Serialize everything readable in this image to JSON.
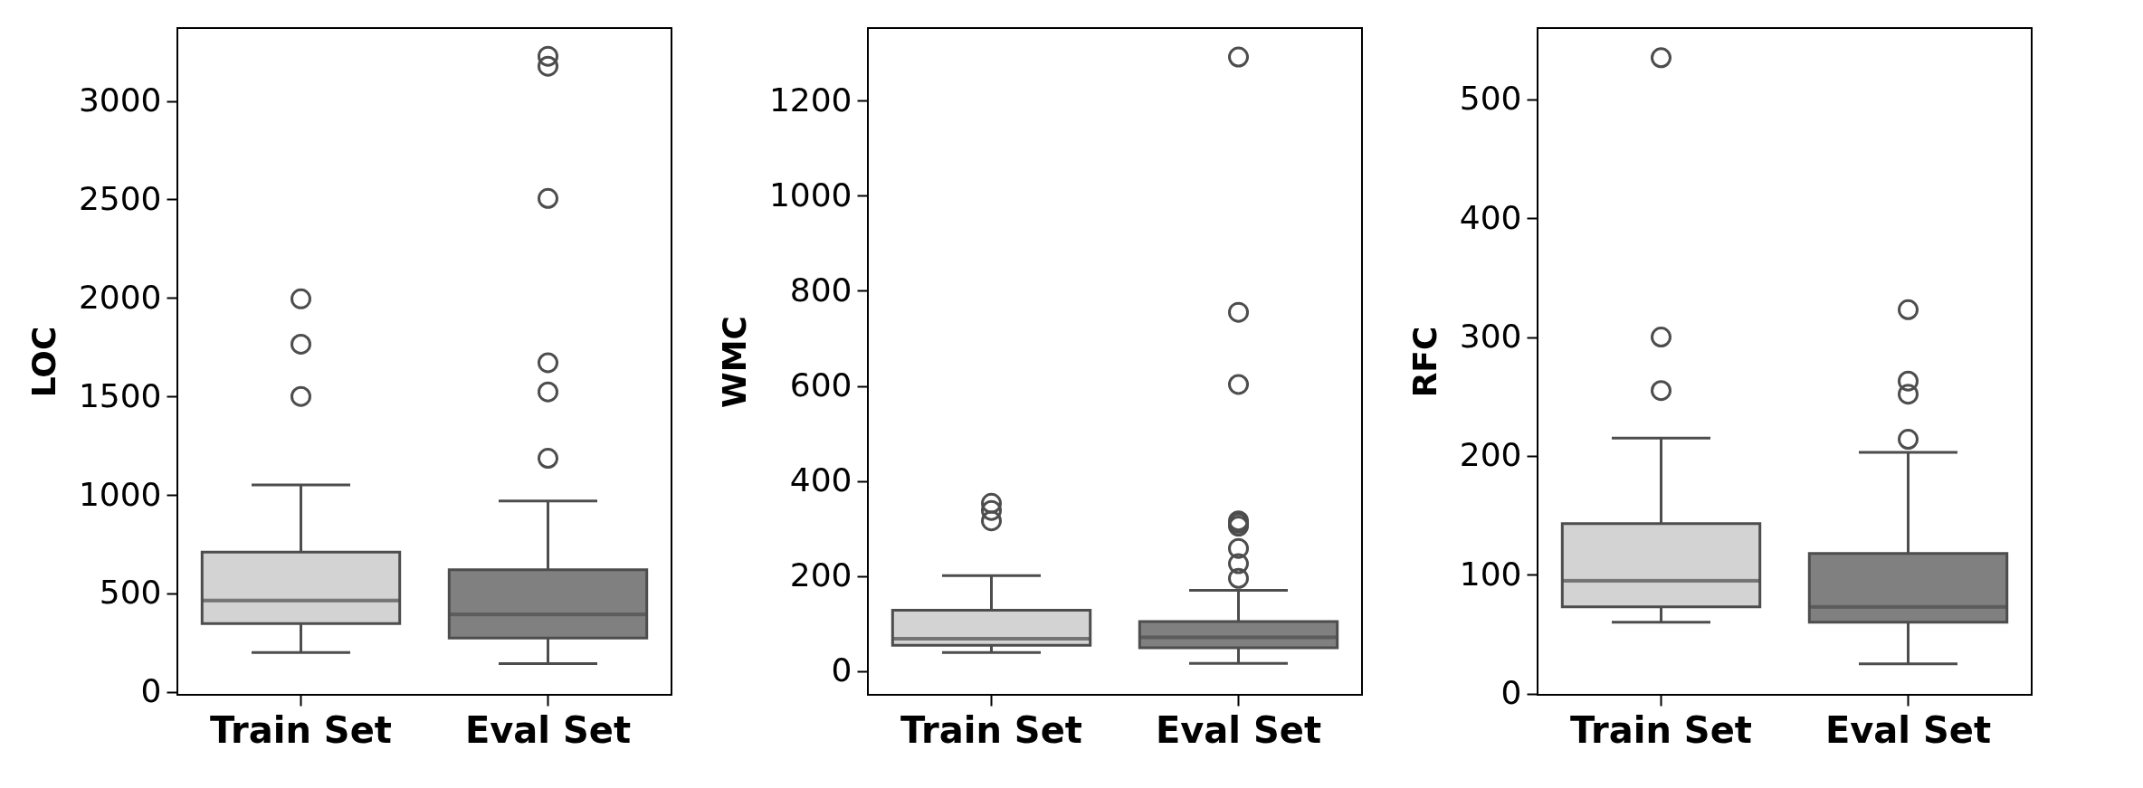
{
  "chart_data": [
    {
      "type": "box",
      "ylabel": "LOC",
      "categories": [
        "Train Set",
        "Eval Set"
      ],
      "colors": [
        "#d3d3d3",
        "#808080"
      ],
      "ylim": [
        -15,
        3370
      ],
      "yticks": [
        0,
        500,
        1000,
        1500,
        2000,
        2500,
        3000
      ],
      "boxes": [
        {
          "low": 200,
          "q1": 347,
          "median": 464,
          "q3": 709,
          "high": 1051,
          "outliers": [
            1500,
            1765,
            1995
          ]
        },
        {
          "low": 143,
          "q1": 273,
          "median": 393,
          "q3": 620,
          "high": 969,
          "outliers": [
            1186,
            1523,
            1671,
            2505,
            3176,
            3227
          ]
        }
      ]
    },
    {
      "type": "box",
      "ylabel": "WMC",
      "categories": [
        "Train Set",
        "Eval Set"
      ],
      "colors": [
        "#d3d3d3",
        "#808080"
      ],
      "ylim": [
        -50,
        1353
      ],
      "yticks": [
        0,
        200,
        400,
        600,
        800,
        1000,
        1200
      ],
      "boxes": [
        {
          "low": 39,
          "q1": 54,
          "median": 68,
          "q3": 128,
          "high": 201,
          "outliers": [
            316,
            338,
            353
          ]
        },
        {
          "low": 16,
          "q1": 49,
          "median": 71,
          "q3": 104,
          "high": 170,
          "outliers": [
            195,
            226,
            258,
            305,
            311,
            316,
            603,
            755,
            1292
          ]
        }
      ]
    },
    {
      "type": "box",
      "ylabel": "RFC",
      "categories": [
        "Train Set",
        "Eval Set"
      ],
      "colors": [
        "#d3d3d3",
        "#808080"
      ],
      "ylim": [
        -1,
        560
      ],
      "yticks": [
        0,
        100,
        200,
        300,
        400,
        500
      ],
      "boxes": [
        {
          "low": 60,
          "q1": 73,
          "median": 95,
          "q3": 143,
          "high": 215,
          "outliers": [
            255,
            300,
            535
          ]
        },
        {
          "low": 25,
          "q1": 60,
          "median": 73,
          "q3": 118,
          "high": 203,
          "outliers": [
            214,
            252,
            263,
            323
          ]
        }
      ]
    }
  ]
}
